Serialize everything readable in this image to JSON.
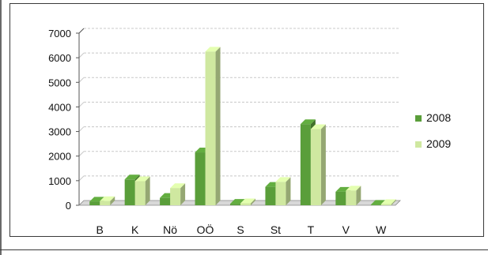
{
  "chart_data": {
    "type": "bar",
    "categories": [
      "B",
      "K",
      "Nö",
      "OÖ",
      "S",
      "St",
      "T",
      "V",
      "W"
    ],
    "series": [
      {
        "name": "2008",
        "values": [
          150,
          1050,
          300,
          2150,
          60,
          750,
          3300,
          550,
          20
        ],
        "color": "#5a9e3a"
      },
      {
        "name": "2009",
        "values": [
          170,
          980,
          700,
          6250,
          80,
          950,
          3100,
          600,
          50
        ],
        "color": "#cfe8a0"
      }
    ],
    "yticks": [
      0,
      1000,
      2000,
      3000,
      4000,
      5000,
      6000,
      7000
    ],
    "ylim": [
      0,
      7000
    ],
    "grid": true,
    "legend_position": "right"
  }
}
